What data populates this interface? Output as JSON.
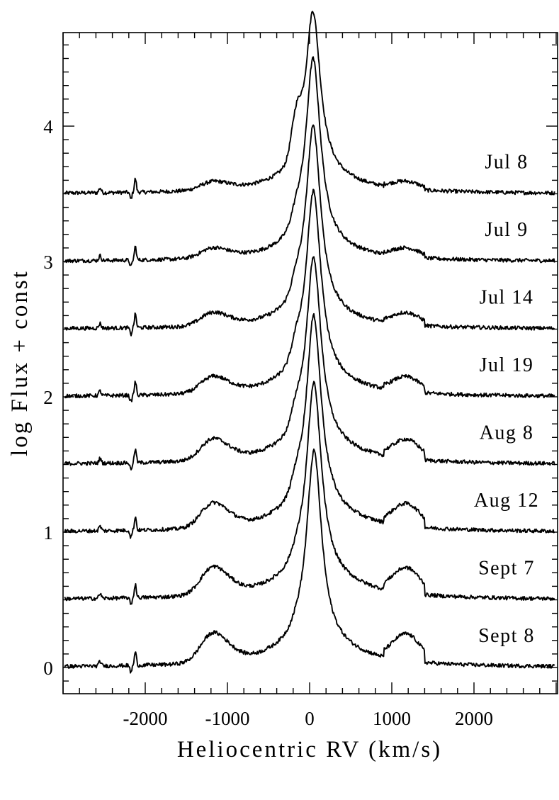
{
  "chart_data": {
    "type": "line",
    "xlabel": "Heliocentric RV  (km/s)",
    "ylabel": "log Flux + const",
    "xlim": [
      -3000,
      3000
    ],
    "ylim": [
      -0.2,
      4.85
    ],
    "xticks": [
      -2000,
      -1000,
      0,
      1000,
      2000
    ],
    "xtick_labels": [
      "-2000",
      "-1000",
      "0",
      "1000",
      "2000"
    ],
    "yticks": [
      0,
      1,
      2,
      3,
      4
    ],
    "ytick_labels": [
      "0",
      "1",
      "2",
      "3",
      "4"
    ],
    "x_minor_step": 200,
    "y_minor_step": 0.1,
    "grid": false,
    "series": [
      {
        "name": "Jul 8",
        "offset": 3.5,
        "peak": 4.85,
        "wing_amp": 0.12,
        "bump_amp": 0.05,
        "blue_shoulder": 0.28
      },
      {
        "name": "Jul 9",
        "offset": 3.0,
        "peak": 4.5,
        "wing_amp": 0.1,
        "bump_amp": 0.06,
        "blue_shoulder": 0.1
      },
      {
        "name": "Jul 14",
        "offset": 2.5,
        "peak": 4.0,
        "wing_amp": 0.1,
        "bump_amp": 0.08,
        "blue_shoulder": 0.1
      },
      {
        "name": "Jul 19",
        "offset": 2.0,
        "peak": 3.52,
        "wing_amp": 0.12,
        "bump_amp": 0.1,
        "blue_shoulder": 0.12
      },
      {
        "name": "Aug 8",
        "offset": 1.5,
        "peak": 3.03,
        "wing_amp": 0.14,
        "bump_amp": 0.13,
        "blue_shoulder": 0.12
      },
      {
        "name": "Aug 12",
        "offset": 1.0,
        "peak": 2.6,
        "wing_amp": 0.15,
        "bump_amp": 0.15,
        "blue_shoulder": 0.1
      },
      {
        "name": "Sept 7",
        "offset": 0.5,
        "peak": 2.1,
        "wing_amp": 0.17,
        "bump_amp": 0.17,
        "blue_shoulder": 0.05
      },
      {
        "name": "Sept 8",
        "offset": 0.0,
        "peak": 1.6,
        "wing_amp": 0.17,
        "bump_amp": 0.18,
        "blue_shoulder": 0.03
      }
    ],
    "features": {
      "narrow_absorption_emission_kms": -2150,
      "blue_bump_center_kms": -1200,
      "red_bump_center_kms": 1180
    }
  }
}
